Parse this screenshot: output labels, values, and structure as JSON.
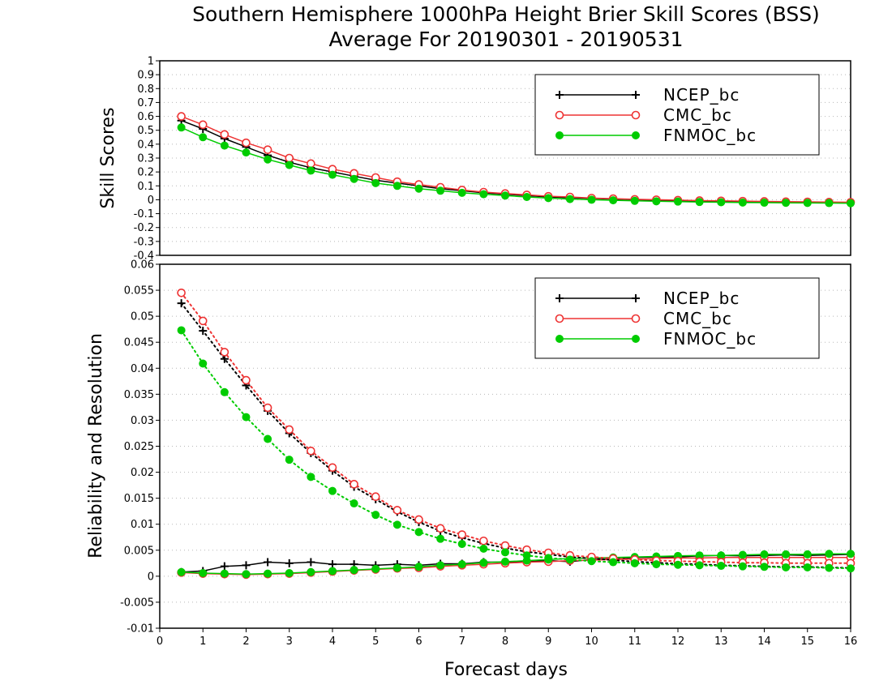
{
  "chart_data": [
    {
      "type": "line",
      "title": "Southern Hemisphere 1000hPa Height Brier Skill Scores (BSS)",
      "subtitle": "Average For 20190301 - 20190531",
      "ylabel": "Skill Scores",
      "ylim": [
        -0.4,
        1.0
      ],
      "yticks": [
        "-0.4",
        "-0.3",
        "-0.2",
        "-0.1",
        "0",
        "0.1",
        "0.2",
        "0.3",
        "0.4",
        "0.5",
        "0.6",
        "0.7",
        "0.8",
        "0.9",
        "1"
      ],
      "grid": true,
      "legend_placement": "top-right",
      "x": [
        0.5,
        1,
        1.5,
        2,
        2.5,
        3,
        3.5,
        4,
        4.5,
        5,
        5.5,
        6,
        6.5,
        7,
        7.5,
        8,
        8.5,
        9,
        9.5,
        10,
        10.5,
        11,
        11.5,
        12,
        12.5,
        13,
        13.5,
        14,
        14.5,
        15,
        15.5,
        16
      ],
      "series": [
        {
          "name": "NCEP_bc",
          "color": "#000000",
          "marker": "plus",
          "values": [
            0.57,
            0.51,
            0.44,
            0.38,
            0.32,
            0.27,
            0.23,
            0.2,
            0.17,
            0.14,
            0.12,
            0.1,
            0.08,
            0.065,
            0.05,
            0.04,
            0.03,
            0.02,
            0.015,
            0.01,
            0.005,
            0.0,
            -0.005,
            -0.008,
            -0.01,
            -0.012,
            -0.015,
            -0.017,
            -0.018,
            -0.02,
            -0.02,
            -0.02
          ]
        },
        {
          "name": "CMC_bc",
          "color": "#ee3333",
          "marker": "open-circle",
          "values": [
            0.6,
            0.54,
            0.47,
            0.41,
            0.36,
            0.3,
            0.26,
            0.22,
            0.19,
            0.16,
            0.13,
            0.11,
            0.09,
            0.07,
            0.055,
            0.045,
            0.035,
            0.025,
            0.02,
            0.012,
            0.008,
            0.003,
            0.0,
            -0.003,
            -0.006,
            -0.008,
            -0.01,
            -0.012,
            -0.014,
            -0.015,
            -0.017,
            -0.018
          ]
        },
        {
          "name": "FNMOC_bc",
          "color": "#00cc00",
          "marker": "filled-circle",
          "values": [
            0.52,
            0.45,
            0.39,
            0.34,
            0.29,
            0.25,
            0.21,
            0.18,
            0.15,
            0.12,
            0.1,
            0.08,
            0.065,
            0.05,
            0.04,
            0.03,
            0.02,
            0.012,
            0.005,
            0.0,
            -0.004,
            -0.008,
            -0.011,
            -0.013,
            -0.016,
            -0.018,
            -0.02,
            -0.021,
            -0.022,
            -0.023,
            -0.024,
            -0.025
          ]
        }
      ]
    },
    {
      "type": "line",
      "xlabel": "Forecast days",
      "ylabel": "Reliability and Resolution",
      "ylim": [
        -0.01,
        0.06
      ],
      "xlim": [
        0,
        16
      ],
      "yticks": [
        "-0.01",
        "-0.005",
        "0",
        "0.005",
        "0.01",
        "0.015",
        "0.02",
        "0.025",
        "0.03",
        "0.035",
        "0.04",
        "0.045",
        "0.05",
        "0.055",
        "0.06"
      ],
      "xticks": [
        "0",
        "1",
        "2",
        "3",
        "4",
        "5",
        "6",
        "7",
        "8",
        "9",
        "10",
        "11",
        "12",
        "13",
        "14",
        "15",
        "16"
      ],
      "grid": true,
      "legend_placement": "top-right",
      "x": [
        0.5,
        1,
        1.5,
        2,
        2.5,
        3,
        3.5,
        4,
        4.5,
        5,
        5.5,
        6,
        6.5,
        7,
        7.5,
        8,
        8.5,
        9,
        9.5,
        10,
        10.5,
        11,
        11.5,
        12,
        12.5,
        13,
        13.5,
        14,
        14.5,
        15,
        15.5,
        16
      ],
      "series": [
        {
          "name": "NCEP_bc",
          "color": "#000000",
          "marker": "plus",
          "group": "reliability",
          "line": "solid",
          "values": [
            0.0008,
            0.001,
            0.0019,
            0.0021,
            0.0027,
            0.0025,
            0.0027,
            0.0023,
            0.0023,
            0.0021,
            0.0023,
            0.0021,
            0.0024,
            0.0024,
            0.0027,
            0.0027,
            0.0028,
            0.003,
            0.0028,
            0.0032,
            0.0033,
            0.0036,
            0.0037,
            0.0037,
            0.0039,
            0.004,
            0.0039,
            0.004,
            0.0041,
            0.004,
            0.0041,
            0.0042
          ]
        },
        {
          "name": "CMC_bc",
          "color": "#ee3333",
          "marker": "open-circle",
          "group": "reliability",
          "line": "solid",
          "values": [
            0.0007,
            0.0005,
            0.0004,
            0.0003,
            0.0004,
            0.0005,
            0.0007,
            0.0009,
            0.0011,
            0.0013,
            0.0015,
            0.0016,
            0.0019,
            0.0021,
            0.0023,
            0.0025,
            0.0027,
            0.0028,
            0.003,
            0.0031,
            0.0032,
            0.0033,
            0.0034,
            0.0035,
            0.0035,
            0.0036,
            0.0036,
            0.0036,
            0.0036,
            0.0036,
            0.0036,
            0.0036
          ]
        },
        {
          "name": "FNMOC_bc",
          "color": "#00cc00",
          "marker": "filled-circle",
          "group": "reliability",
          "line": "solid",
          "values": [
            0.0008,
            0.0006,
            0.0005,
            0.0004,
            0.0005,
            0.0006,
            0.0008,
            0.001,
            0.0012,
            0.0014,
            0.0016,
            0.0018,
            0.0021,
            0.0023,
            0.0026,
            0.0028,
            0.003,
            0.0032,
            0.0034,
            0.0035,
            0.0036,
            0.0037,
            0.0038,
            0.0039,
            0.004,
            0.004,
            0.0041,
            0.0042,
            0.0042,
            0.0042,
            0.0043,
            0.0043
          ]
        },
        {
          "name": "NCEP_bc",
          "color": "#000000",
          "marker": "plus",
          "group": "resolution",
          "line": "dotted",
          "values": [
            0.0525,
            0.0472,
            0.0418,
            0.0367,
            0.0318,
            0.0275,
            0.0237,
            0.0203,
            0.0172,
            0.0148,
            0.0124,
            0.0104,
            0.0087,
            0.0074,
            0.0063,
            0.0054,
            0.0047,
            0.0042,
            0.0037,
            0.0034,
            0.0031,
            0.0028,
            0.0026,
            0.0024,
            0.0023,
            0.0021,
            0.002,
            0.0019,
            0.0018,
            0.0018,
            0.0017,
            0.0016
          ]
        },
        {
          "name": "CMC_bc",
          "color": "#ee3333",
          "marker": "open-circle",
          "group": "resolution",
          "line": "dotted",
          "values": [
            0.0545,
            0.0491,
            0.0431,
            0.0377,
            0.0324,
            0.0282,
            0.0241,
            0.0209,
            0.0177,
            0.0153,
            0.0127,
            0.0109,
            0.0092,
            0.008,
            0.0068,
            0.0059,
            0.0051,
            0.0045,
            0.004,
            0.0037,
            0.0034,
            0.0032,
            0.003,
            0.0029,
            0.0028,
            0.0027,
            0.0026,
            0.0026,
            0.0025,
            0.0025,
            0.0025,
            0.0025
          ]
        },
        {
          "name": "FNMOC_bc",
          "color": "#00cc00",
          "marker": "filled-circle",
          "group": "resolution",
          "line": "dotted",
          "values": [
            0.0473,
            0.0409,
            0.0354,
            0.0306,
            0.0264,
            0.0224,
            0.0191,
            0.0164,
            0.014,
            0.0118,
            0.0099,
            0.0085,
            0.0072,
            0.0062,
            0.0053,
            0.0046,
            0.004,
            0.0035,
            0.0032,
            0.0029,
            0.0027,
            0.0025,
            0.0023,
            0.0022,
            0.0021,
            0.002,
            0.0019,
            0.0018,
            0.0017,
            0.0017,
            0.0016,
            0.0015
          ]
        }
      ]
    }
  ]
}
